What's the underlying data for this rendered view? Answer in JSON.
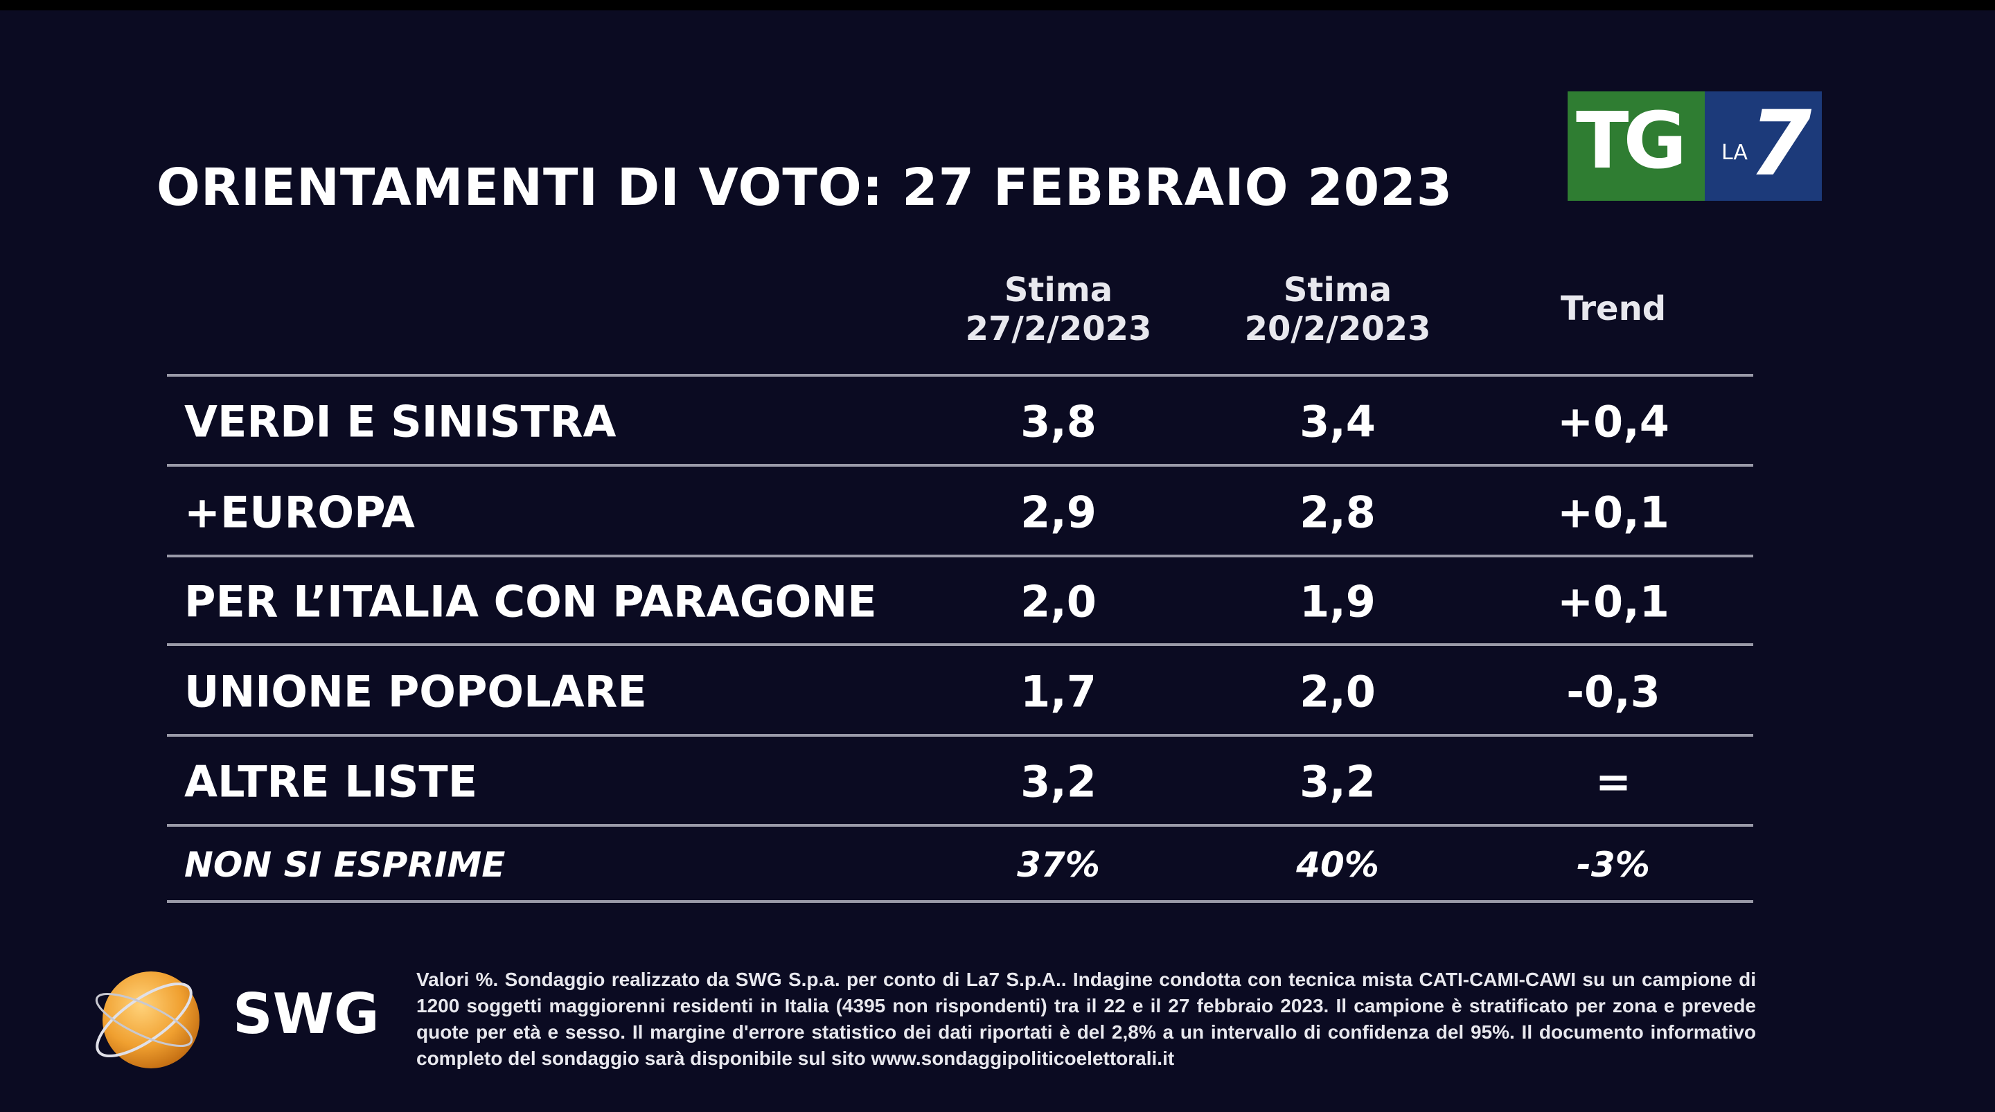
{
  "header": {
    "title": "ORIENTAMENTI DI VOTO: 27 FEBBRAIO 2023",
    "logo": {
      "tg": "TG",
      "la": "LA",
      "seven": "7"
    }
  },
  "table": {
    "columns": [
      [
        "Stima",
        "27/2/2023"
      ],
      [
        "Stima",
        "20/2/2023"
      ],
      [
        "Trend"
      ]
    ],
    "rows": [
      [
        "VERDI E SINISTRA",
        "3,8",
        "3,4",
        "+0,4"
      ],
      [
        "+EUROPA",
        "2,9",
        "2,8",
        "+0,1"
      ],
      [
        "PER L’ITALIA CON PARAGONE",
        "2,0",
        "1,9",
        "+0,1"
      ],
      [
        "UNIONE POPOLARE",
        "1,7",
        "2,0",
        "-0,3"
      ],
      [
        "ALTRE LISTE",
        "3,2",
        "3,2",
        "="
      ],
      [
        "NON SI ESPRIME",
        "37%",
        "40%",
        "-3%"
      ]
    ]
  },
  "footer": {
    "brand": "SWG",
    "note": "Valori %. Sondaggio realizzato da SWG S.p.a. per conto di La7 S.p.A.. Indagine condotta con tecnica mista CATI-CAMI-CAWI su un campione di 1200 soggetti maggiorenni residenti in Italia (4395 non rispondenti) tra il 22 e il 27 febbraio 2023. Il campione è stratificato per zona e prevede quote per età e sesso. Il margine d'errore statistico dei dati riportati è del 2,8% a un intervallo di confidenza del 95%. Il documento informativo completo del sondaggio sarà disponibile sul sito www.sondaggipoliticoelettorali.it"
  }
}
